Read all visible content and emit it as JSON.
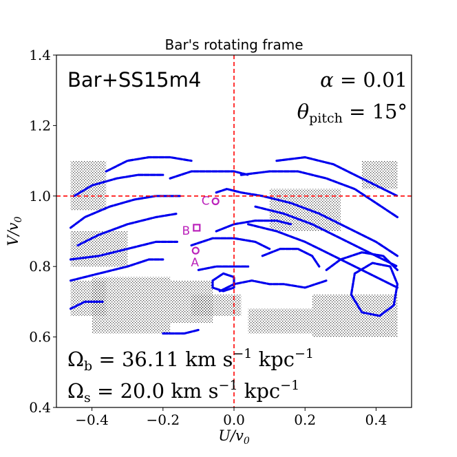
{
  "chart_data": {
    "type": "scatter",
    "title": "Bar's rotating frame",
    "xlabel": "U/v",
    "xlabel_sub": "0",
    "ylabel": "V/v",
    "ylabel_sub": "0",
    "xlim": [
      -0.5,
      0.5
    ],
    "ylim": [
      0.4,
      1.4
    ],
    "xticks": [
      -0.4,
      -0.2,
      0.0,
      0.2,
      0.4
    ],
    "xtick_labels": [
      "−0.4",
      "−0.2",
      "0.0",
      "0.2",
      "0.4"
    ],
    "yticks": [
      0.4,
      0.6,
      0.8,
      1.0,
      1.2,
      1.4
    ],
    "ytick_labels": [
      "0.4",
      "0.6",
      "0.8",
      "1.0",
      "1.2",
      "1.4"
    ],
    "grid": false,
    "model_label": "Bar+SS15m4",
    "params": {
      "alpha": {
        "symbol": "α",
        "eq": " = ",
        "value": "0.01"
      },
      "pitch": {
        "symbol": "θ",
        "sub": "pitch",
        "eq": " = ",
        "value": "15°"
      }
    },
    "pattern_speeds": [
      {
        "symbol": "Ω",
        "sub": "b",
        "eq": " = ",
        "value": "36.11",
        "unit_a": " km s",
        "sup_a": "−1",
        "unit_b": " kpc",
        "sup_b": "−1"
      },
      {
        "symbol": "Ω",
        "sub": "s",
        "eq": " = ",
        "value": "20.0",
        "unit_a": " km s",
        "sup_a": "−1",
        "unit_b": " kpc",
        "sup_b": "−1"
      }
    ],
    "reference_lines": {
      "x": 0.0,
      "y": 1.0,
      "color": "#ff0000",
      "style": "dashed"
    },
    "colors": {
      "resonant_streams": "#0000ee",
      "background_orbits": "#000000",
      "markers": "#bb22bb"
    },
    "series": [
      {
        "name": "",
        "color": "#0000ee",
        "curves": [
          [
            [
              -0.46,
              0.91
            ],
            [
              -0.42,
              0.94
            ],
            [
              -0.35,
              0.97
            ],
            [
              -0.28,
              0.99
            ],
            [
              -0.22,
              1.0
            ],
            [
              -0.15,
              1.0
            ]
          ],
          [
            [
              -0.45,
              1.0
            ],
            [
              -0.4,
              1.03
            ],
            [
              -0.33,
              1.05
            ],
            [
              -0.27,
              1.06
            ],
            [
              -0.2,
              1.06
            ]
          ],
          [
            [
              -0.36,
              1.07
            ],
            [
              -0.3,
              1.1
            ],
            [
              -0.24,
              1.11
            ],
            [
              -0.18,
              1.11
            ],
            [
              -0.12,
              1.1
            ]
          ],
          [
            [
              -0.18,
              1.05
            ],
            [
              -0.12,
              1.07
            ],
            [
              -0.06,
              1.07
            ],
            [
              0.0,
              1.07
            ],
            [
              0.04,
              1.06
            ]
          ],
          [
            [
              -0.44,
              0.86
            ],
            [
              -0.38,
              0.89
            ],
            [
              -0.3,
              0.92
            ],
            [
              -0.22,
              0.94
            ],
            [
              -0.16,
              0.95
            ]
          ],
          [
            [
              -0.46,
              0.82
            ],
            [
              -0.38,
              0.83
            ],
            [
              -0.3,
              0.85
            ],
            [
              -0.22,
              0.87
            ],
            [
              -0.16,
              0.87
            ]
          ],
          [
            [
              -0.46,
              0.76
            ],
            [
              -0.38,
              0.78
            ],
            [
              -0.3,
              0.8
            ],
            [
              -0.24,
              0.82
            ],
            [
              -0.2,
              0.82
            ]
          ],
          [
            [
              -0.05,
              1.01
            ],
            [
              -0.02,
              1.02
            ],
            [
              0.02,
              1.01
            ],
            [
              0.08,
              1.0
            ],
            [
              0.16,
              0.98
            ],
            [
              0.24,
              0.95
            ],
            [
              0.32,
              0.91
            ],
            [
              0.4,
              0.87
            ],
            [
              0.46,
              0.83
            ]
          ],
          [
            [
              0.02,
              1.06
            ],
            [
              0.1,
              1.07
            ],
            [
              0.18,
              1.07
            ],
            [
              0.26,
              1.05
            ],
            [
              0.34,
              1.02
            ],
            [
              0.4,
              0.98
            ],
            [
              0.46,
              0.94
            ]
          ],
          [
            [
              0.12,
              1.1
            ],
            [
              0.2,
              1.11
            ],
            [
              0.28,
              1.09
            ],
            [
              0.34,
              1.06
            ],
            [
              0.4,
              1.03
            ],
            [
              0.46,
              1.0
            ]
          ],
          [
            [
              0.06,
              0.97
            ],
            [
              0.14,
              0.95
            ],
            [
              0.22,
              0.92
            ],
            [
              0.3,
              0.88
            ],
            [
              0.38,
              0.84
            ],
            [
              0.46,
              0.8
            ]
          ],
          [
            [
              0.04,
              0.92
            ],
            [
              0.12,
              0.9
            ],
            [
              0.2,
              0.87
            ],
            [
              0.28,
              0.83
            ],
            [
              0.36,
              0.79
            ],
            [
              0.46,
              0.74
            ]
          ],
          [
            [
              -0.05,
              0.9
            ],
            [
              0.0,
              0.92
            ],
            [
              0.06,
              0.93
            ],
            [
              0.12,
              0.93
            ],
            [
              0.16,
              0.92
            ]
          ],
          [
            [
              -0.12,
              0.86
            ],
            [
              -0.06,
              0.88
            ],
            [
              0.0,
              0.88
            ],
            [
              0.06,
              0.87
            ],
            [
              0.1,
              0.85
            ]
          ],
          [
            [
              -0.1,
              0.79
            ],
            [
              -0.05,
              0.8
            ],
            [
              0.0,
              0.8
            ],
            [
              0.04,
              0.8
            ]
          ],
          [
            [
              0.08,
              0.83
            ],
            [
              0.13,
              0.85
            ],
            [
              0.18,
              0.85
            ],
            [
              0.22,
              0.83
            ],
            [
              0.24,
              0.8
            ]
          ],
          [
            [
              -0.04,
              0.73
            ],
            [
              0.0,
              0.75
            ],
            [
              0.05,
              0.76
            ],
            [
              0.1,
              0.75
            ],
            [
              0.14,
              0.75
            ],
            [
              0.2,
              0.74
            ],
            [
              0.26,
              0.76
            ]
          ],
          [
            [
              0.34,
              0.78
            ],
            [
              0.39,
              0.81
            ],
            [
              0.44,
              0.8
            ],
            [
              0.46,
              0.75
            ],
            [
              0.45,
              0.69
            ],
            [
              0.41,
              0.66
            ],
            [
              0.36,
              0.67
            ],
            [
              0.33,
              0.72
            ],
            [
              0.34,
              0.78
            ]
          ],
          [
            [
              0.26,
              0.79
            ],
            [
              0.3,
              0.82
            ],
            [
              0.36,
              0.84
            ],
            [
              0.42,
              0.83
            ],
            [
              0.46,
              0.79
            ]
          ],
          [
            [
              -0.06,
              0.76
            ],
            [
              -0.03,
              0.78
            ],
            [
              0.0,
              0.77
            ],
            [
              0.0,
              0.74
            ],
            [
              -0.03,
              0.73
            ],
            [
              -0.06,
              0.74
            ],
            [
              -0.06,
              0.76
            ]
          ],
          [
            [
              -0.46,
              0.68
            ],
            [
              -0.42,
              0.7
            ],
            [
              -0.37,
              0.7
            ]
          ],
          [
            [
              -0.2,
              0.61
            ],
            [
              -0.14,
              0.61
            ],
            [
              -0.1,
              0.62
            ]
          ]
        ]
      },
      {
        "name": "",
        "color": "#000000",
        "regions": [
          {
            "x": [
              -0.46,
              -0.36
            ],
            "y": [
              0.96,
              1.1
            ]
          },
          {
            "x": [
              -0.4,
              -0.18
            ],
            "y": [
              0.61,
              0.77
            ]
          },
          {
            "x": [
              -0.18,
              -0.06
            ],
            "y": [
              0.64,
              0.76
            ]
          },
          {
            "x": [
              -0.46,
              -0.36
            ],
            "y": [
              0.66,
              0.76
            ]
          },
          {
            "x": [
              0.22,
              0.46
            ],
            "y": [
              0.6,
              0.72
            ]
          },
          {
            "x": [
              0.36,
              0.46
            ],
            "y": [
              1.02,
              1.1
            ]
          },
          {
            "x": [
              0.04,
              0.22
            ],
            "y": [
              0.61,
              0.68
            ]
          },
          {
            "x": [
              -0.46,
              -0.3
            ],
            "y": [
              0.8,
              0.9
            ]
          },
          {
            "x": [
              0.1,
              0.3
            ],
            "y": [
              0.9,
              1.02
            ]
          },
          {
            "x": [
              -0.12,
              0.02
            ],
            "y": [
              0.66,
              0.72
            ]
          }
        ]
      }
    ],
    "markers": [
      {
        "label": "A",
        "shape": "circle",
        "x": -0.108,
        "y": 0.845,
        "label_x": -0.11,
        "label_y": 0.81
      },
      {
        "label": "B",
        "shape": "square",
        "x": -0.105,
        "y": 0.91,
        "label_x": -0.135,
        "label_y": 0.9
      },
      {
        "label": "C",
        "shape": "circle",
        "x": -0.052,
        "y": 0.985,
        "label_x": -0.08,
        "label_y": 0.985
      }
    ]
  }
}
